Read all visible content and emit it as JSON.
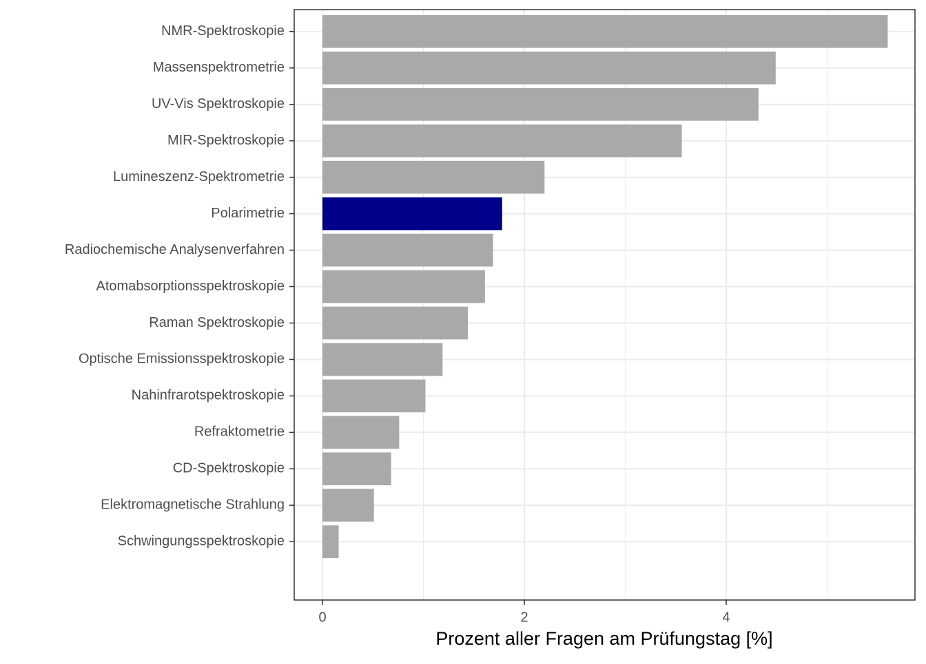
{
  "chart_data": {
    "type": "bar",
    "orientation": "horizontal",
    "x_label": "Prozent aller Fragen am Prüfungstag [%]",
    "categories": [
      "NMR-Spektroskopie",
      "Massenspektrometrie",
      "UV-Vis Spektroskopie",
      "MIR-Spektroskopie",
      "Lumineszenz-Spektrometrie",
      "Polarimetrie",
      "Radiochemische Analysenverfahren",
      "Atomabsorptionsspektroskopie",
      "Raman Spektroskopie",
      "Optische Emissionsspektroskopie",
      "Nahinfrarotspektroskopie",
      "Refraktometrie",
      "CD-Spektroskopie",
      "Elektromagnetische Strahlung",
      "Schwingungsspektroskopie"
    ],
    "values": [
      5.6,
      4.49,
      4.32,
      3.56,
      2.2,
      1.78,
      1.69,
      1.61,
      1.44,
      1.19,
      1.02,
      0.76,
      0.68,
      0.51,
      0.16
    ],
    "colors": [
      "#a9a9a9",
      "#a9a9a9",
      "#a9a9a9",
      "#a9a9a9",
      "#a9a9a9",
      "#00008b",
      "#a9a9a9",
      "#a9a9a9",
      "#a9a9a9",
      "#a9a9a9",
      "#a9a9a9",
      "#a9a9a9",
      "#a9a9a9",
      "#a9a9a9",
      "#a9a9a9"
    ],
    "xlim": [
      -0.28,
      5.87
    ],
    "xticks": [
      0,
      2,
      4
    ],
    "minor_xticks": [
      1,
      3,
      5
    ],
    "grid": true
  }
}
